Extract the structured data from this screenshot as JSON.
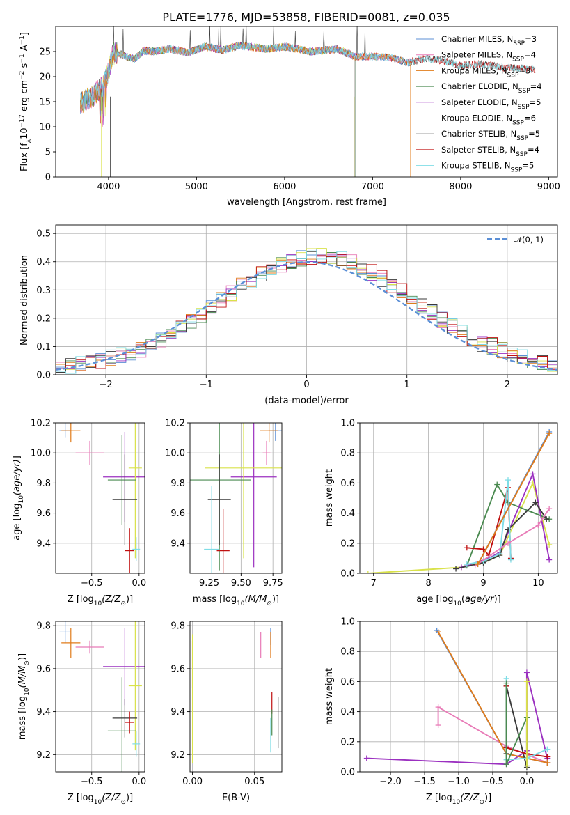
{
  "title": "PLATE=1776, MJD=53858, FIBERID=0081, z=0.035",
  "colors": {
    "Chabrier MILES": "#5b8fd6",
    "Salpeter MILES": "#e87bb7",
    "Kroupa MILES": "#e07b1a",
    "Chabrier ELODIE": "#4a8a50",
    "Salpeter ELODIE": "#9b30c0",
    "Kroupa ELODIE": "#d9e24a",
    "Chabrier STELIB": "#3a3a3a",
    "Salpeter STELIB": "#c01010",
    "Kroupa STELIB": "#7fdde6"
  },
  "chart_data": [
    {
      "id": "spectrum",
      "type": "line",
      "xlabel": "wavelength [Angstrom, rest frame]",
      "ylabel_main": "Flux [f",
      "ylabel_sub": "λ",
      "ylabel_rest": "10",
      "ylabel_exp1": "−17",
      "ylabel_mid": " erg cm",
      "ylabel_exp2": "−2",
      "ylabel_s": " s",
      "ylabel_exp3": "−1",
      "ylabel_end": " A",
      "ylabel_exp4": "−1",
      "ylabel_close": "]",
      "xlim": [
        3400,
        9100
      ],
      "ylim": [
        0,
        30
      ],
      "xticks": [
        4000,
        5000,
        6000,
        7000,
        8000,
        9000
      ],
      "yticks": [
        0,
        5,
        10,
        15,
        20,
        25
      ],
      "spectrum_knots_x": [
        3680,
        3750,
        3820,
        3900,
        3950,
        4000,
        4050,
        4100,
        4200,
        4300,
        4400,
        4500,
        4700,
        4900,
        5100,
        5300,
        5500,
        5800,
        6000,
        6300,
        6600,
        6800,
        7000,
        7200,
        7400,
        7600,
        7800,
        8000,
        8200,
        8500,
        8800
      ],
      "spectrum_knots_y": [
        14.5,
        15.5,
        16.0,
        17.5,
        18.5,
        21.0,
        24.5,
        24.8,
        24.0,
        23.5,
        25.2,
        25.0,
        25.5,
        24.8,
        26.0,
        25.3,
        26.2,
        25.5,
        26.0,
        25.0,
        25.5,
        24.0,
        24.0,
        23.8,
        22.8,
        23.6,
        23.2,
        22.2,
        22.5,
        21.8,
        21.5
      ],
      "legend": [
        {
          "label": "Chabrier MILES, N",
          "sub": "SSP",
          "n": "=3",
          "color": "#5b8fd6"
        },
        {
          "label": "Salpeter MILES, N",
          "sub": "SSP",
          "n": "=4",
          "color": "#e87bb7"
        },
        {
          "label": "Kroupa MILES, N",
          "sub": "SSP",
          "n": "=3",
          "color": "#e07b1a"
        },
        {
          "label": "Chabrier ELODIE, N",
          "sub": "SSP",
          "n": "=4",
          "color": "#4a8a50"
        },
        {
          "label": "Salpeter ELODIE, N",
          "sub": "SSP",
          "n": "=5",
          "color": "#9b30c0"
        },
        {
          "label": "Kroupa ELODIE, N",
          "sub": "SSP",
          "n": "=6",
          "color": "#d9e24a"
        },
        {
          "label": "Chabrier STELIB, N",
          "sub": "SSP",
          "n": "=5",
          "color": "#3a3a3a"
        },
        {
          "label": "Salpeter STELIB, N",
          "sub": "SSP",
          "n": "=4",
          "color": "#c01010"
        },
        {
          "label": "Kroupa STELIB, N",
          "sub": "SSP",
          "n": "=5",
          "color": "#7fdde6"
        }
      ],
      "legend_position": "upper-right",
      "grid": false
    },
    {
      "id": "residuals",
      "type": "histogram",
      "xlabel": "(data-model)/error",
      "ylabel": "Normed distribution",
      "xlim": [
        -2.5,
        2.5
      ],
      "ylim": [
        0,
        0.53
      ],
      "xticks": [
        -2,
        -1,
        0,
        1,
        2
      ],
      "xticklabels": [
        "−2",
        "−1",
        "0",
        "1",
        "2"
      ],
      "yticks": [
        0.0,
        0.1,
        0.2,
        0.3,
        0.4,
        0.5
      ],
      "yticklabels": [
        "0.0",
        "0.1",
        "0.2",
        "0.3",
        "0.4",
        "0.5"
      ],
      "bin_width": 0.1,
      "gaussian_label": "𝒩(0, 1)",
      "gaussian_color": "#5b8fd6",
      "legend_position": "upper-right",
      "grid": true
    },
    {
      "id": "age_vs_Z",
      "type": "errorbar",
      "xlabel_main": "Z [log",
      "xlabel_sub": "10",
      "xlabel_rest": "(Z/Z",
      "xlabel_sun": "⊙",
      "xlabel_end": ")]",
      "ylabel": "age  [log10(age/yr)]",
      "xlim": [
        -0.88,
        0.06
      ],
      "ylim": [
        9.2,
        10.2
      ],
      "xticks": [
        -0.5,
        0.0
      ],
      "xticklabels": [
        "−0.5",
        "0.0"
      ],
      "yticks": [
        9.4,
        9.6,
        9.8,
        10.0,
        10.2
      ],
      "yticklabels": [
        "9.4",
        "9.6",
        "9.8",
        "10.0",
        "10.2"
      ],
      "points": [
        {
          "model": "Chabrier MILES",
          "x": -0.78,
          "xerr": 0.06,
          "y": 10.15,
          "yerr": 0.05
        },
        {
          "model": "Kroupa MILES",
          "x": -0.72,
          "xerr": 0.1,
          "y": 10.15,
          "yerr": 0.08
        },
        {
          "model": "Salpeter MILES",
          "x": -0.52,
          "xerr": 0.15,
          "y": 10.0,
          "yerr": 0.08
        },
        {
          "model": "Salpeter ELODIE",
          "x": -0.15,
          "xerr": 0.23,
          "y": 9.84,
          "yerr": 0.3
        },
        {
          "model": "Kroupa ELODIE",
          "x": -0.04,
          "xerr": 0.07,
          "y": 9.9,
          "yerr": 0.6
        },
        {
          "model": "Chabrier ELODIE",
          "x": -0.18,
          "xerr": 0.15,
          "y": 9.82,
          "yerr": 0.3
        },
        {
          "model": "Chabrier STELIB",
          "x": -0.15,
          "xerr": 0.13,
          "y": 9.69,
          "yerr": 0.3
        },
        {
          "model": "Salpeter STELIB",
          "x": -0.1,
          "xerr": 0.05,
          "y": 9.35,
          "yerr": 0.15
        },
        {
          "model": "Kroupa STELIB",
          "x": -0.03,
          "xerr": 0.04,
          "y": 9.36,
          "yerr": 0.08
        }
      ],
      "grid": true
    },
    {
      "id": "age_vs_mass",
      "type": "errorbar",
      "xlabel_main": "mass [log",
      "xlabel_sub": "10",
      "xlabel_rest": "(M/M",
      "xlabel_sun": "⊙",
      "xlabel_end": ")]",
      "xlim": [
        9.1,
        9.82
      ],
      "ylim": [
        9.2,
        10.2
      ],
      "xticks": [
        9.25,
        9.5,
        9.75
      ],
      "xticklabels": [
        "9.25",
        "9.50",
        "9.75"
      ],
      "yticks": [
        9.4,
        9.6,
        9.8,
        10.0,
        10.2
      ],
      "yticklabels": [
        "9.4",
        "9.6",
        "9.8",
        "10.0",
        "10.2"
      ],
      "points": [
        {
          "model": "Chabrier MILES",
          "x": 9.77,
          "xerr": 0.05,
          "y": 10.15,
          "yerr": 0.07
        },
        {
          "model": "Kroupa MILES",
          "x": 9.72,
          "xerr": 0.07,
          "y": 10.15,
          "yerr": 0.08
        },
        {
          "model": "Salpeter MILES",
          "x": 9.7,
          "xerr": 0.03,
          "y": 10.0,
          "yerr": 0.08
        },
        {
          "model": "Salpeter ELODIE",
          "x": 9.6,
          "xerr": 0.18,
          "y": 9.84,
          "yerr": 0.6
        },
        {
          "model": "Kroupa ELODIE",
          "x": 9.52,
          "xerr": 0.3,
          "y": 9.9,
          "yerr": 0.6
        },
        {
          "model": "Chabrier ELODIE",
          "x": 9.33,
          "xerr": 0.25,
          "y": 9.82,
          "yerr": 0.6
        },
        {
          "model": "Chabrier STELIB",
          "x": 9.33,
          "xerr": 0.09,
          "y": 9.69,
          "yerr": 0.3
        },
        {
          "model": "Salpeter STELIB",
          "x": 9.36,
          "xerr": 0.05,
          "y": 9.35,
          "yerr": 0.28
        },
        {
          "model": "Kroupa STELIB",
          "x": 9.27,
          "xerr": 0.06,
          "y": 9.36,
          "yerr": 0.42
        }
      ],
      "grid": true
    },
    {
      "id": "massweight_vs_age",
      "type": "line",
      "xlabel_main": "age  [log",
      "xlabel_sub": "10",
      "xlabel_rest": "(age/yr)]",
      "ylabel": "mass weight",
      "xlim": [
        6.75,
        10.35
      ],
      "ylim": [
        0,
        1.0
      ],
      "xticks": [
        7,
        8,
        9,
        10
      ],
      "xticklabels": [
        "7",
        "8",
        "9",
        "10"
      ],
      "yticks": [
        0.0,
        0.2,
        0.4,
        0.6,
        0.8,
        1.0
      ],
      "yticklabels": [
        "0.0",
        "0.2",
        "0.4",
        "0.6",
        "0.8",
        "1.0"
      ],
      "series": [
        {
          "model": "Kroupa ELODIE",
          "x": [
            6.9,
            8.6,
            9.1,
            9.3,
            9.9,
            10.2
          ],
          "y": [
            0.0,
            0.04,
            0.09,
            0.12,
            0.6,
            0.19
          ]
        },
        {
          "model": "Chabrier ELODIE",
          "x": [
            8.7,
            9.25,
            9.45,
            10.2
          ],
          "y": [
            0.05,
            0.59,
            0.47,
            0.36
          ]
        },
        {
          "model": "Salpeter ELODIE",
          "x": [
            8.6,
            9.1,
            9.3,
            9.9,
            10.2
          ],
          "y": [
            0.04,
            0.1,
            0.14,
            0.66,
            0.09
          ]
        },
        {
          "model": "Chabrier STELIB",
          "x": [
            8.5,
            9.0,
            9.3,
            9.45,
            9.95,
            10.15
          ],
          "y": [
            0.03,
            0.07,
            0.12,
            0.29,
            0.47,
            0.36
          ]
        },
        {
          "model": "Salpeter STELIB",
          "x": [
            8.7,
            9.0,
            9.1,
            9.45,
            9.5
          ],
          "y": [
            0.17,
            0.16,
            0.12,
            0.57,
            0.1
          ]
        },
        {
          "model": "Kroupa STELIB",
          "x": [
            8.7,
            9.0,
            9.3,
            9.45,
            9.5
          ],
          "y": [
            0.06,
            0.08,
            0.13,
            0.62,
            0.09
          ]
        },
        {
          "model": "Salpeter MILES",
          "x": [
            8.85,
            9.45,
            10.0,
            10.2
          ],
          "y": [
            0.05,
            0.2,
            0.32,
            0.43
          ]
        },
        {
          "model": "Chabrier MILES",
          "x": [
            8.9,
            10.2
          ],
          "y": [
            0.06,
            0.94
          ]
        },
        {
          "model": "Kroupa MILES",
          "x": [
            8.9,
            10.2
          ],
          "y": [
            0.06,
            0.93
          ]
        }
      ],
      "grid": true
    },
    {
      "id": "mass_vs_Z",
      "type": "errorbar",
      "xlabel_main": "Z [log",
      "xlabel_sub": "10",
      "xlabel_rest": "(Z/Z",
      "xlabel_sun": "⊙",
      "xlabel_end": ")]",
      "ylabel": "mass [log10(M/M⊙)]",
      "xlim": [
        -0.88,
        0.06
      ],
      "ylim": [
        9.12,
        9.82
      ],
      "xticks": [
        -0.5,
        0.0
      ],
      "xticklabels": [
        "−0.5",
        "0.0"
      ],
      "yticks": [
        9.2,
        9.4,
        9.6,
        9.8
      ],
      "yticklabels": [
        "9.2",
        "9.4",
        "9.6",
        "9.8"
      ],
      "points": [
        {
          "model": "Chabrier MILES",
          "x": -0.78,
          "xerr": 0.06,
          "y": 9.77,
          "yerr": 0.05
        },
        {
          "model": "Kroupa MILES",
          "x": -0.72,
          "xerr": 0.1,
          "y": 9.72,
          "yerr": 0.07
        },
        {
          "model": "Salpeter MILES",
          "x": -0.52,
          "xerr": 0.15,
          "y": 9.7,
          "yerr": 0.03
        },
        {
          "model": "Salpeter ELODIE",
          "x": -0.15,
          "xerr": 0.23,
          "y": 9.61,
          "yerr": 0.18
        },
        {
          "model": "Kroupa ELODIE",
          "x": -0.04,
          "xerr": 0.07,
          "y": 9.52,
          "yerr": 0.3
        },
        {
          "model": "Chabrier ELODIE",
          "x": -0.18,
          "xerr": 0.15,
          "y": 9.31,
          "yerr": 0.25
        },
        {
          "model": "Chabrier STELIB",
          "x": -0.15,
          "xerr": 0.13,
          "y": 9.37,
          "yerr": 0.09
        },
        {
          "model": "Salpeter STELIB",
          "x": -0.1,
          "xerr": 0.05,
          "y": 9.35,
          "yerr": 0.05
        },
        {
          "model": "Kroupa STELIB",
          "x": -0.03,
          "xerr": 0.04,
          "y": 9.25,
          "yerr": 0.06
        }
      ],
      "grid": true
    },
    {
      "id": "mass_vs_ebv",
      "type": "errorbar",
      "xlabel": "E(B-V)",
      "xlim": [
        -0.002,
        0.072
      ],
      "ylim": [
        9.12,
        9.82
      ],
      "xticks": [
        0.0,
        0.05
      ],
      "xticklabels": [
        "0.00",
        "0.05"
      ],
      "yticks": [
        9.2,
        9.4,
        9.6,
        9.8
      ],
      "yticklabels": [
        "9.2",
        "9.4",
        "9.6",
        "9.8"
      ],
      "points": [
        {
          "model": "Salpeter ELODIE",
          "x": 0.0,
          "xerr": 0,
          "y": 9.62,
          "yerr": 0.11
        },
        {
          "model": "Kroupa ELODIE",
          "x": 0.0,
          "xerr": 0,
          "y": 9.46,
          "yerr": 0.3
        },
        {
          "model": "Salpeter MILES",
          "x": 0.055,
          "xerr": 0,
          "y": 9.71,
          "yerr": 0.06
        },
        {
          "model": "Chabrier MILES",
          "x": 0.063,
          "xerr": 0,
          "y": 9.75,
          "yerr": 0.04
        },
        {
          "model": "Kroupa MILES",
          "x": 0.063,
          "xerr": 0,
          "y": 9.71,
          "yerr": 0.06
        },
        {
          "model": "Salpeter STELIB",
          "x": 0.064,
          "xerr": 0,
          "y": 9.44,
          "yerr": 0.05
        },
        {
          "model": "Chabrier ELODIE",
          "x": 0.064,
          "xerr": 0,
          "y": 9.35,
          "yerr": 0.06
        },
        {
          "model": "Kroupa STELIB",
          "x": 0.063,
          "xerr": 0,
          "y": 9.29,
          "yerr": 0.08
        },
        {
          "model": "Chabrier STELIB",
          "x": 0.069,
          "xerr": 0,
          "y": 9.35,
          "yerr": 0.12
        }
      ],
      "grid": true
    },
    {
      "id": "massweight_vs_Z",
      "type": "line",
      "xlabel_main": "Z [log",
      "xlabel_sub": "10",
      "xlabel_rest": "(Z/Z",
      "xlabel_sun": "⊙",
      "xlabel_end": ")]",
      "ylabel": "mass weight",
      "xlim": [
        -2.45,
        0.45
      ],
      "ylim": [
        0,
        1.0
      ],
      "xticks": [
        -2.0,
        -1.5,
        -1.0,
        -0.5,
        0.0
      ],
      "xticklabels": [
        "−2.0",
        "−1.5",
        "−1.0",
        "−0.5",
        "0.0"
      ],
      "yticks": [
        0.0,
        0.2,
        0.4,
        0.6,
        0.8,
        1.0
      ],
      "yticklabels": [
        "0.0",
        "0.2",
        "0.4",
        "0.6",
        "0.8",
        "1.0"
      ],
      "series": [
        {
          "model": "Salpeter ELODIE",
          "x": [
            -2.35,
            -0.3,
            0.0,
            0.0,
            0.3
          ],
          "y": [
            0.09,
            0.05,
            0.14,
            0.66,
            0.09
          ]
        },
        {
          "model": "Salpeter MILES",
          "x": [
            -1.3,
            -1.3,
            -0.3,
            0.3
          ],
          "y": [
            0.31,
            0.43,
            0.17,
            0.06
          ]
        },
        {
          "model": "Chabrier MILES",
          "x": [
            -1.32,
            -0.3,
            0.3
          ],
          "y": [
            0.94,
            0.12,
            0.06
          ]
        },
        {
          "model": "Kroupa MILES",
          "x": [
            -1.3,
            -0.3,
            0.3
          ],
          "y": [
            0.93,
            0.12,
            0.06
          ]
        },
        {
          "model": "Chabrier STELIB",
          "x": [
            -0.3,
            -0.3,
            0.0,
            0.0
          ],
          "y": [
            0.12,
            0.57,
            0.03,
            0.36
          ]
        },
        {
          "model": "Salpeter STELIB",
          "x": [
            -0.3,
            -0.3,
            0.0,
            0.3
          ],
          "y": [
            0.57,
            0.16,
            0.12,
            0.1
          ]
        },
        {
          "model": "Kroupa STELIB",
          "x": [
            -0.3,
            -0.3,
            0.0,
            0.3
          ],
          "y": [
            0.62,
            0.08,
            0.09,
            0.15
          ]
        },
        {
          "model": "Chabrier ELODIE",
          "x": [
            -0.3,
            -0.3,
            0.0
          ],
          "y": [
            0.59,
            0.05,
            0.36
          ]
        },
        {
          "model": "Kroupa ELODIE",
          "x": [
            0.0,
            0.0
          ],
          "y": [
            0.04,
            0.6
          ]
        }
      ],
      "grid": true
    }
  ]
}
